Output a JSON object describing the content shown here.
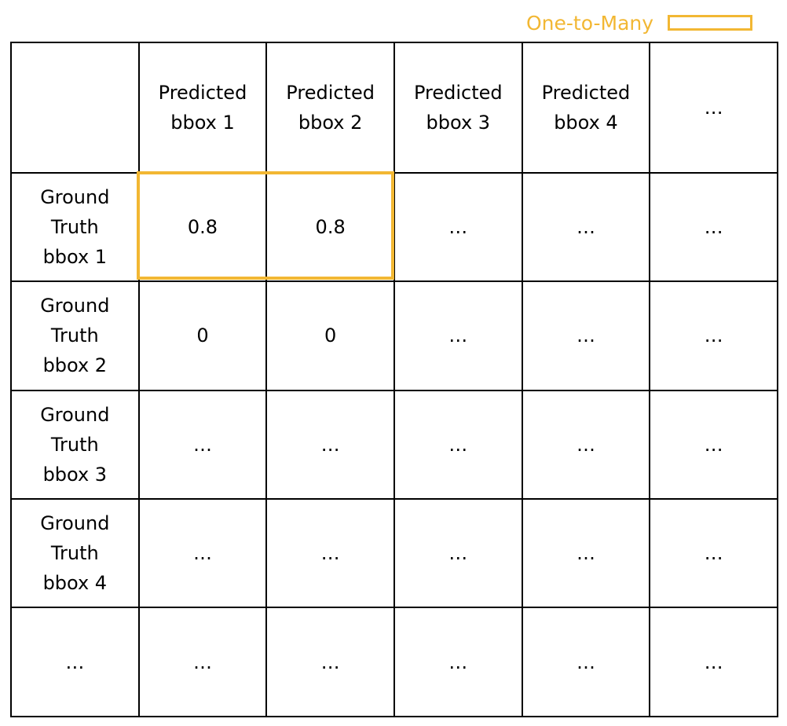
{
  "legend": {
    "label": "One-to-Many",
    "color": "#F2B733"
  },
  "matrix": {
    "corner": "",
    "column_headers": [
      "Predicted\nbbox 1",
      "Predicted\nbbox 2",
      "Predicted\nbbox 3",
      "Predicted\nbbox 4",
      "…"
    ],
    "rows": [
      {
        "header": "Ground\nTruth\nbbox 1",
        "cells": [
          "0.8",
          "0.8",
          "…",
          "…",
          "…"
        ]
      },
      {
        "header": "Ground\nTruth\nbbox 2",
        "cells": [
          "0",
          "0",
          "…",
          "…",
          "…"
        ]
      },
      {
        "header": "Ground\nTruth\nbbox 3",
        "cells": [
          "…",
          "…",
          "…",
          "…",
          "…"
        ]
      },
      {
        "header": "Ground\nTruth\nbbox 4",
        "cells": [
          "…",
          "…",
          "…",
          "…",
          "…"
        ]
      },
      {
        "header": "…",
        "cells": [
          "…",
          "…",
          "…",
          "…",
          "…"
        ]
      }
    ],
    "highlighted_cells": [
      {
        "row": 0,
        "col": 0
      },
      {
        "row": 0,
        "col": 1
      }
    ]
  }
}
